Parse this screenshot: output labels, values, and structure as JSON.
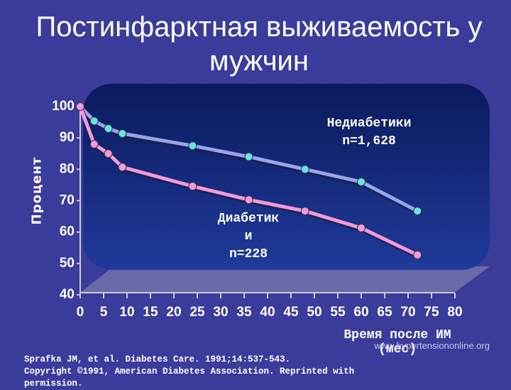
{
  "chart_data": {
    "type": "line",
    "title": "Постинфарктная выживаемость у мужчин",
    "y_label": "Процент",
    "x_label": "Время после ИМ\n(мес)",
    "x": [
      0,
      3,
      6,
      9,
      24,
      36,
      48,
      60,
      72
    ],
    "series": [
      {
        "name": "Недиабетики\nn=1,628",
        "color": "#9aa4e8",
        "marker_color": "#66e6dc",
        "values": [
          100,
          95.4,
          93,
          91.4,
          87.5,
          84,
          80,
          76,
          66.7
        ]
      },
      {
        "name": "Диабетик\nи\nn=228",
        "color": "#f49ad6",
        "marker_color": "#f49ad6",
        "values": [
          100,
          88,
          85,
          80.7,
          74.6,
          70.3,
          66.7,
          61.3,
          52.7
        ]
      }
    ],
    "xlim": [
      0,
      80
    ],
    "xticks": [
      0,
      5,
      10,
      15,
      20,
      25,
      30,
      35,
      40,
      45,
      50,
      55,
      60,
      65,
      70,
      75,
      80
    ],
    "ylim": [
      40,
      100
    ],
    "yticks": [
      40,
      50,
      60,
      70,
      80,
      90,
      100
    ],
    "source": "Sprafka JM, et al. Diabetes Care. 1991;14:537-543.\nCopyright ©1991, American Diabetes Association. Reprinted with permission.",
    "watermark": "www.hypertensiononline.org"
  }
}
